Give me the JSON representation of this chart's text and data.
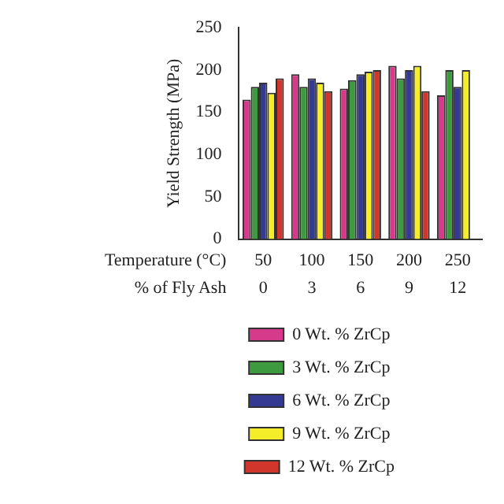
{
  "chart_data": {
    "type": "bar",
    "ylabel": "Yield Strength (MPa)",
    "xlabel": "Temperature (°C)",
    "annotations": [
      "% of Fly Ash"
    ],
    "categories": [
      "50\n0",
      "100\n3",
      "150\n6",
      "200\n9",
      "250\n12"
    ],
    "series": [
      {
        "name": "0 Wt. % ZrCp",
        "color": "#d63a8a",
        "values": [
          165,
          195,
          178,
          205,
          170
        ]
      },
      {
        "name": "3 Wt. % ZrCp",
        "color": "#3e9a3e",
        "values": [
          180,
          180,
          188,
          190,
          200
        ]
      },
      {
        "name": "6 Wt. % ZrCp",
        "color": "#343a92",
        "values": [
          185,
          190,
          195,
          200,
          180
        ]
      },
      {
        "name": "9 Wt. % ZrCp",
        "color": "#f5ec2a",
        "values": [
          173,
          185,
          198,
          205,
          200
        ]
      },
      {
        "name": "12 Wt. % ZrCp",
        "color": "#d0362c",
        "values": [
          190,
          175,
          200,
          175,
          null
        ]
      }
    ],
    "ylim": [
      0,
      250
    ],
    "yticks": [
      0,
      50,
      100,
      150,
      200,
      250
    ],
    "grid": false,
    "legend": "bottom"
  }
}
